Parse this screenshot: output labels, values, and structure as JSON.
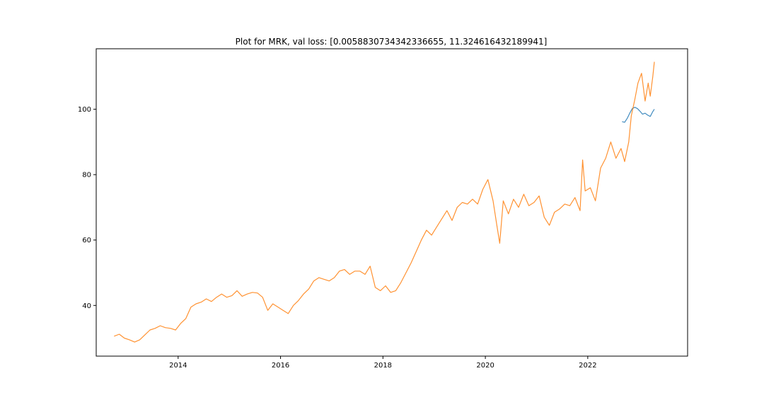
{
  "chart_data": {
    "type": "line",
    "title": "Plot for MRK, val loss: [0.0058830734342336655, 11.324616432189941]",
    "xlabel": "",
    "ylabel": "",
    "xlim": [
      2012.4,
      2023.95
    ],
    "ylim": [
      24.5,
      118.5
    ],
    "x_ticks": [
      2014,
      2016,
      2018,
      2020,
      2022
    ],
    "x_tick_labels": [
      "2014",
      "2016",
      "2018",
      "2020",
      "2022"
    ],
    "y_ticks": [
      40,
      60,
      80,
      100
    ],
    "y_tick_labels": [
      "40",
      "60",
      "80",
      "100"
    ],
    "grid": false,
    "legend": "none",
    "series": [
      {
        "color": "#1f77b4",
        "x": [
          2022.67,
          2022.72,
          2022.77,
          2022.82,
          2022.87,
          2022.92,
          2022.97,
          2023.02,
          2023.07,
          2023.12,
          2023.17,
          2023.22,
          2023.27,
          2023.3
        ],
        "y": [
          96.2,
          96.0,
          97.2,
          98.8,
          100.2,
          100.6,
          100.2,
          99.4,
          98.5,
          98.8,
          98.2,
          97.8,
          99.3,
          100.0
        ]
      },
      {
        "color": "#ff7f0e",
        "x": [
          2012.75,
          2012.85,
          2012.95,
          2013.05,
          2013.15,
          2013.25,
          2013.35,
          2013.45,
          2013.55,
          2013.65,
          2013.75,
          2013.85,
          2013.95,
          2014.05,
          2014.15,
          2014.25,
          2014.35,
          2014.45,
          2014.55,
          2014.65,
          2014.75,
          2014.85,
          2014.95,
          2015.05,
          2015.15,
          2015.25,
          2015.35,
          2015.45,
          2015.55,
          2015.65,
          2015.75,
          2015.85,
          2015.95,
          2016.05,
          2016.15,
          2016.25,
          2016.35,
          2016.45,
          2016.55,
          2016.65,
          2016.75,
          2016.85,
          2016.95,
          2017.05,
          2017.15,
          2017.25,
          2017.35,
          2017.45,
          2017.55,
          2017.65,
          2017.75,
          2017.85,
          2017.95,
          2018.05,
          2018.15,
          2018.25,
          2018.35,
          2018.45,
          2018.55,
          2018.65,
          2018.75,
          2018.85,
          2018.95,
          2019.05,
          2019.15,
          2019.25,
          2019.35,
          2019.45,
          2019.55,
          2019.65,
          2019.75,
          2019.85,
          2019.95,
          2020.05,
          2020.15,
          2020.22,
          2020.28,
          2020.35,
          2020.45,
          2020.55,
          2020.65,
          2020.75,
          2020.85,
          2020.95,
          2021.05,
          2021.15,
          2021.25,
          2021.35,
          2021.45,
          2021.55,
          2021.65,
          2021.75,
          2021.85,
          2021.9,
          2021.95,
          2022.05,
          2022.15,
          2022.25,
          2022.35,
          2022.45,
          2022.55,
          2022.65,
          2022.72,
          2022.8,
          2022.85,
          2022.92,
          2022.98,
          2023.05,
          2023.12,
          2023.18,
          2023.22,
          2023.27,
          2023.3
        ],
        "y": [
          30.6,
          31.2,
          30.0,
          29.5,
          28.8,
          29.5,
          31.0,
          32.5,
          33.0,
          33.8,
          33.2,
          33.0,
          32.5,
          34.5,
          36.0,
          39.5,
          40.5,
          41.0,
          42.0,
          41.2,
          42.5,
          43.5,
          42.5,
          43.0,
          44.5,
          42.8,
          43.5,
          44.0,
          43.8,
          42.5,
          38.5,
          40.5,
          39.5,
          38.5,
          37.5,
          40.0,
          41.5,
          43.5,
          45.0,
          47.5,
          48.5,
          48.0,
          47.5,
          48.5,
          50.5,
          51.0,
          49.5,
          50.5,
          50.5,
          49.5,
          52.0,
          45.5,
          44.5,
          46.0,
          44.0,
          44.5,
          47.0,
          50.0,
          53.0,
          56.5,
          60.0,
          63.0,
          61.5,
          64.0,
          66.5,
          69.0,
          66.0,
          70.0,
          71.5,
          71.0,
          72.5,
          71.0,
          75.5,
          78.5,
          72.0,
          65.0,
          59.0,
          72.0,
          68.0,
          72.5,
          70.0,
          74.0,
          70.5,
          71.5,
          73.5,
          67.0,
          64.5,
          68.5,
          69.5,
          71.0,
          70.5,
          73.0,
          69.0,
          84.5,
          75.0,
          76.0,
          72.0,
          82.0,
          85.0,
          90.0,
          85.0,
          88.0,
          84.0,
          90.0,
          98.0,
          103.0,
          108.0,
          111.0,
          102.5,
          108.0,
          104.0,
          110.0,
          114.5
        ]
      }
    ]
  }
}
